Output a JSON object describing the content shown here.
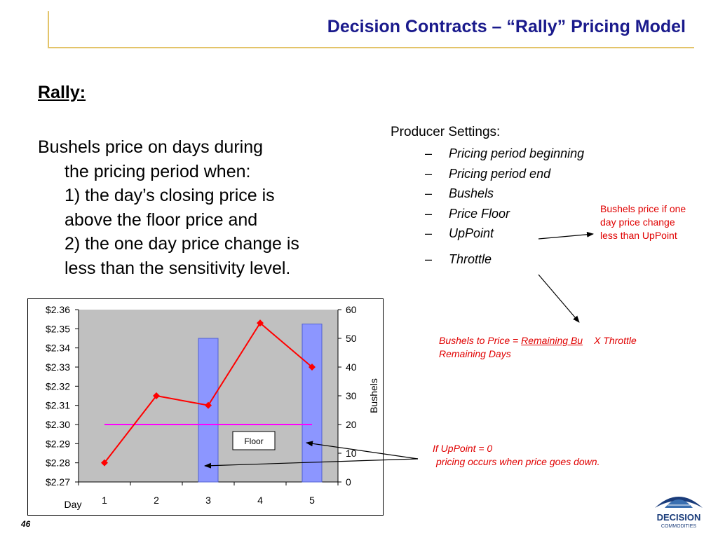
{
  "title": "Decision Contracts – “Rally” Pricing Model",
  "rally_heading": "Rally:",
  "body": {
    "line1": "Bushels price on days  during",
    "line2": "the pricing period when:",
    "line3": "1) the day’s closing price is",
    "line4": "above the floor price and",
    "line5": "2) the one day price change is",
    "line6": "less than the sensitivity level."
  },
  "settings": {
    "title": "Producer Settings:",
    "dash": "–",
    "items": [
      "Pricing period beginning",
      "Pricing period end",
      "Bushels",
      "Price Floor",
      "UpPoint",
      "Throttle"
    ]
  },
  "notes": {
    "upPoint_line1": "Bushels price if one",
    "upPoint_line2": "day price change",
    "upPoint_line3": "less than UpPoint",
    "formula_prefix": "Bushels to Price = ",
    "formula_numerator": "Remaining Bu",
    "formula_suffix": "X Throttle",
    "formula_denominator": "Remaining Days",
    "zero_line1": "If UpPoint = 0",
    "zero_line2": "pricing occurs when price goes down."
  },
  "page_number": "46",
  "logo": {
    "line1": "DECISION",
    "line2": "COMMODITIES"
  },
  "colors": {
    "title": "#1a1a8c",
    "annotation": "#e00000",
    "plot_background": "#c0c0c0",
    "bar_fill": "#8c96ff",
    "price_line": "#ff0000",
    "floor_line": "#ff00ff",
    "accent_line": "#e3c46a"
  },
  "chart_data": {
    "type": "bar",
    "categories": [
      "1",
      "2",
      "3",
      "4",
      "5"
    ],
    "xlabel": "Day",
    "ylabel_right": "Bushels",
    "y_left_ticks": [
      "$2.36",
      "$2.35",
      "$2.34",
      "$2.33",
      "$2.32",
      "$2.31",
      "$2.30",
      "$2.29",
      "$2.28",
      "$2.27"
    ],
    "y_left_range": [
      2.27,
      2.36
    ],
    "y_right_ticks": [
      "60",
      "50",
      "40",
      "30",
      "20",
      "10",
      "0"
    ],
    "y_right_range": [
      0,
      60
    ],
    "bars": [
      0,
      0,
      50,
      0,
      55
    ],
    "price_series": [
      2.28,
      2.315,
      2.31,
      2.353,
      2.33
    ],
    "floor_series": [
      2.3,
      2.3,
      2.3,
      2.3,
      2.3
    ],
    "floor_label": "Floor",
    "grid": false
  }
}
